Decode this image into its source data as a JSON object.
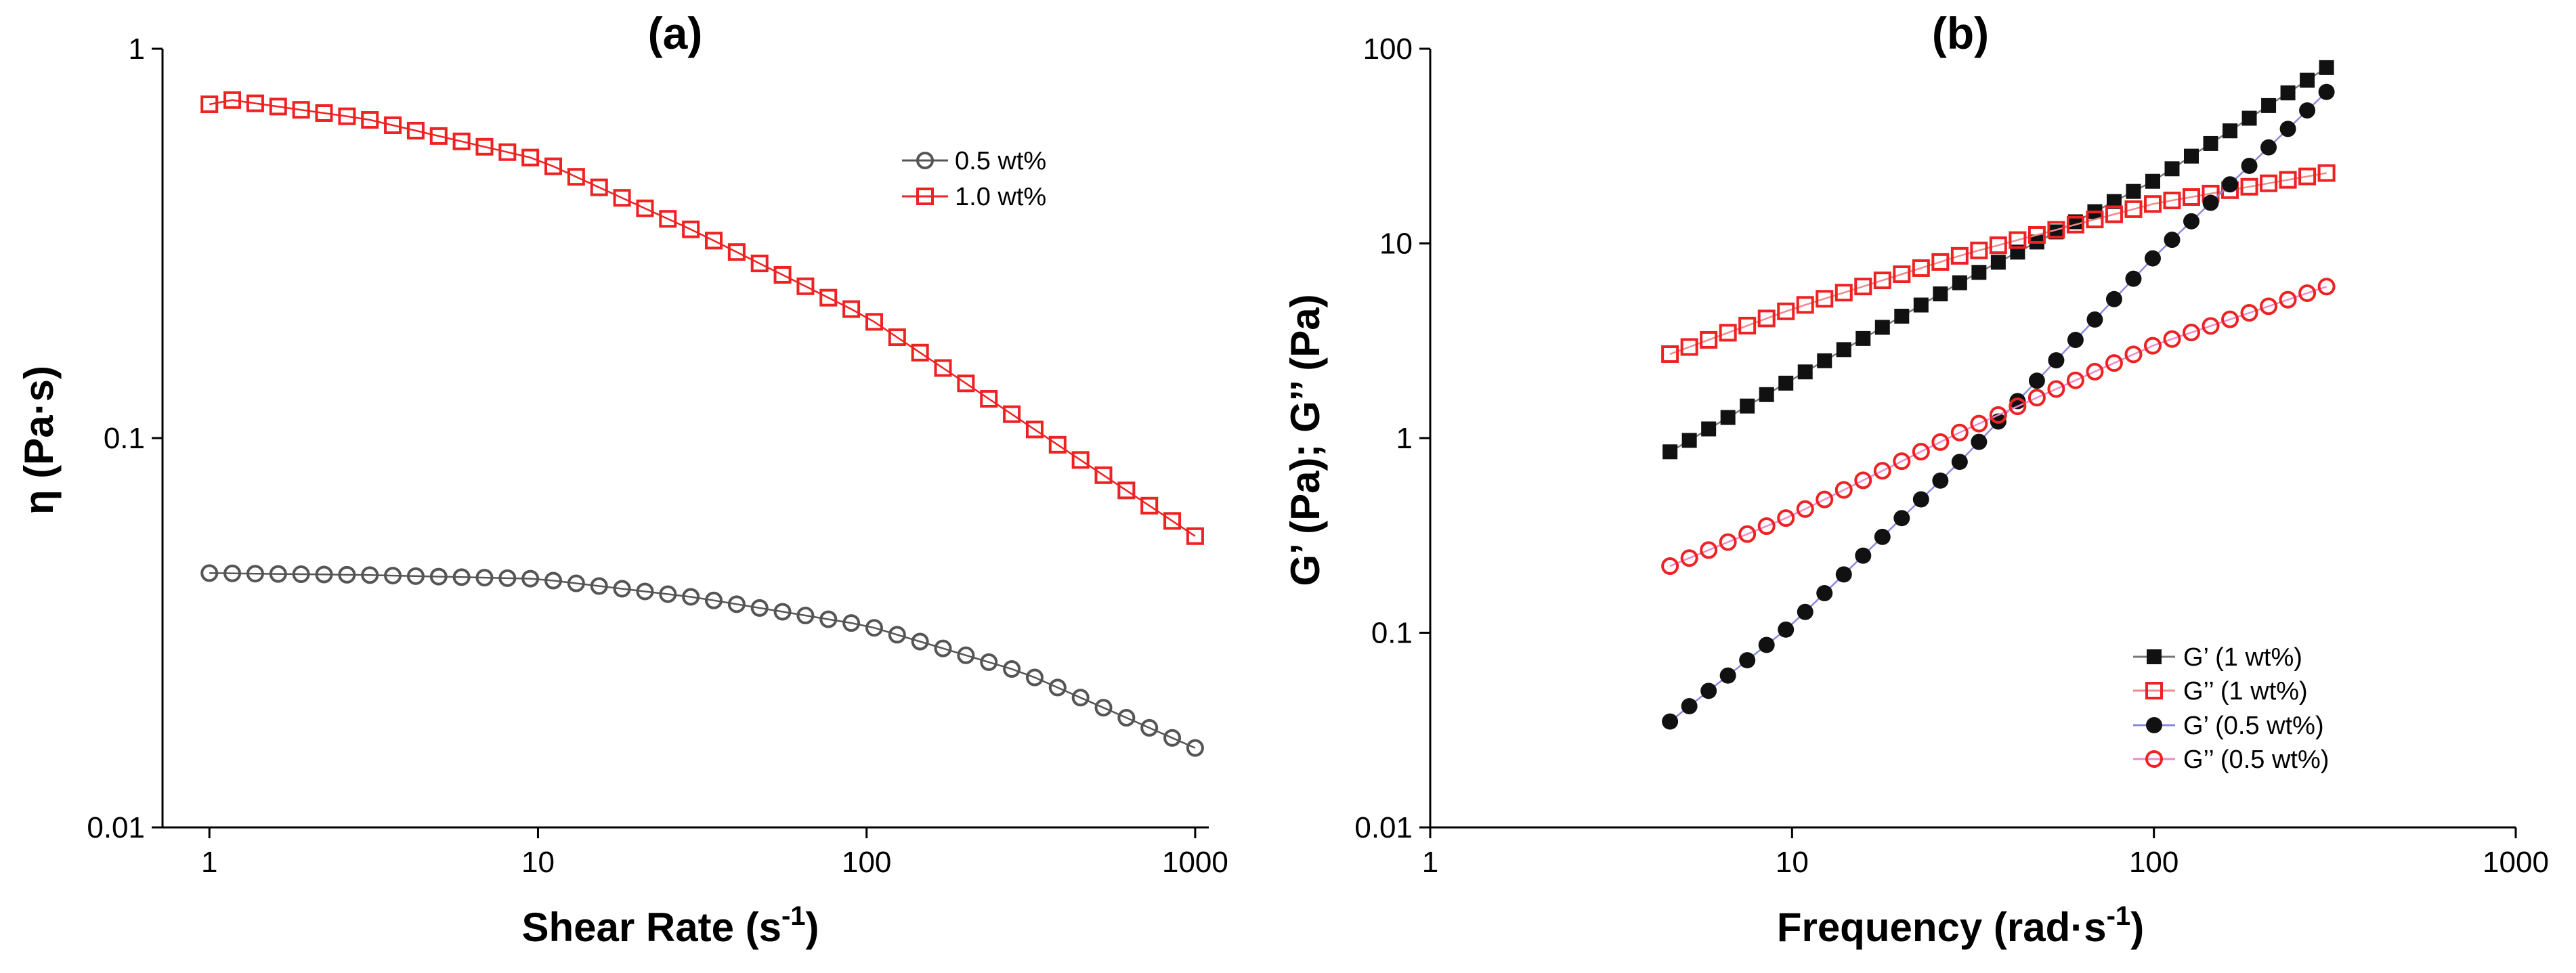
{
  "chart_data": [
    {
      "panel_label": "(a)",
      "type": "scatter",
      "x_scale": "log",
      "y_scale": "log",
      "xlabel": "Shear Rate (s",
      "xlabel_sup": "-1",
      "xlabel_end": ")",
      "ylabel": "η (Pa·s)",
      "xlim": [
        0.72,
        1100
      ],
      "ylim": [
        0.01,
        1
      ],
      "x_ticks": [
        {
          "value": 1,
          "label": "1"
        },
        {
          "value": 10,
          "label": "10"
        },
        {
          "value": 100,
          "label": "100"
        },
        {
          "value": 1000,
          "label": "1000"
        }
      ],
      "y_ticks": [
        {
          "value": 0.01,
          "label": "0.01"
        },
        {
          "value": 0.1,
          "label": "0.1"
        },
        {
          "value": 1,
          "label": "1"
        }
      ],
      "legend_position": "top-right",
      "series": [
        {
          "name": "0.5 wt%",
          "color": "#555555",
          "marker": "circle-open",
          "x_range": [
            1,
            1000
          ],
          "n_points": 44,
          "anchors": [
            [
              1,
              0.045
            ],
            [
              3,
              0.0445
            ],
            [
              10,
              0.0435
            ],
            [
              30,
              0.039
            ],
            [
              100,
              0.033
            ],
            [
              300,
              0.025
            ],
            [
              1000,
              0.016
            ]
          ]
        },
        {
          "name": "1.0 wt%",
          "color": "#ee2222",
          "marker": "square-open",
          "x_range": [
            1,
            1000
          ],
          "n_points": 44,
          "anchors": [
            [
              1,
              0.72
            ],
            [
              1.15,
              0.74
            ],
            [
              3,
              0.66
            ],
            [
              10,
              0.52
            ],
            [
              30,
              0.34
            ],
            [
              100,
              0.205
            ],
            [
              300,
              0.11
            ],
            [
              1000,
              0.056
            ]
          ]
        }
      ]
    },
    {
      "panel_label": "(b)",
      "type": "scatter",
      "x_scale": "log",
      "y_scale": "log",
      "xlabel": "Frequency (rad·s",
      "xlabel_sup": "-1",
      "xlabel_end": ")",
      "ylabel": "G’ (Pa); G’’ (Pa)",
      "xlim": [
        1,
        1000
      ],
      "ylim": [
        0.01,
        100
      ],
      "x_ticks": [
        {
          "value": 1,
          "label": "1"
        },
        {
          "value": 10,
          "label": "10"
        },
        {
          "value": 100,
          "label": "100"
        },
        {
          "value": 1000,
          "label": "1000"
        }
      ],
      "y_ticks": [
        {
          "value": 0.01,
          "label": "0.01"
        },
        {
          "value": 0.1,
          "label": "0.1"
        },
        {
          "value": 1,
          "label": "1"
        },
        {
          "value": 10,
          "label": "10"
        },
        {
          "value": 100,
          "label": "100"
        }
      ],
      "legend_position": "bottom-right",
      "series": [
        {
          "name": "G’ (1 wt%)",
          "color": "#111111",
          "line_color": "#777777",
          "marker": "square-filled",
          "x_range": [
            4.6,
            300
          ],
          "n_points": 35,
          "anchors": [
            [
              4.6,
              0.85
            ],
            [
              10,
              2.0
            ],
            [
              30,
              6.5
            ],
            [
              100,
              21
            ],
            [
              300,
              80
            ]
          ]
        },
        {
          "name": "G’’ (1 wt%)",
          "color": "#ee2222",
          "line_color": "#f08a8a",
          "marker": "square-open",
          "x_range": [
            4.6,
            300
          ],
          "n_points": 35,
          "anchors": [
            [
              4.6,
              2.7
            ],
            [
              10,
              4.6
            ],
            [
              30,
              8.8
            ],
            [
              100,
              16
            ],
            [
              300,
              23
            ]
          ]
        },
        {
          "name": "G’ (0.5 wt%)",
          "color": "#111111",
          "line_color": "#8888dd",
          "marker": "circle-filled",
          "x_range": [
            4.6,
            300
          ],
          "n_points": 35,
          "anchors": [
            [
              4.6,
              0.035
            ],
            [
              10,
              0.11
            ],
            [
              30,
              0.8
            ],
            [
              100,
              8.5
            ],
            [
              300,
              60
            ]
          ]
        },
        {
          "name": "G’’ (0.5 wt%)",
          "color": "#ee2222",
          "line_color": "#ee88cc",
          "marker": "circle-open",
          "x_range": [
            4.6,
            300
          ],
          "n_points": 35,
          "anchors": [
            [
              4.6,
              0.22
            ],
            [
              10,
              0.4
            ],
            [
              30,
              1.1
            ],
            [
              100,
              3.0
            ],
            [
              300,
              6.0
            ]
          ]
        }
      ]
    }
  ]
}
